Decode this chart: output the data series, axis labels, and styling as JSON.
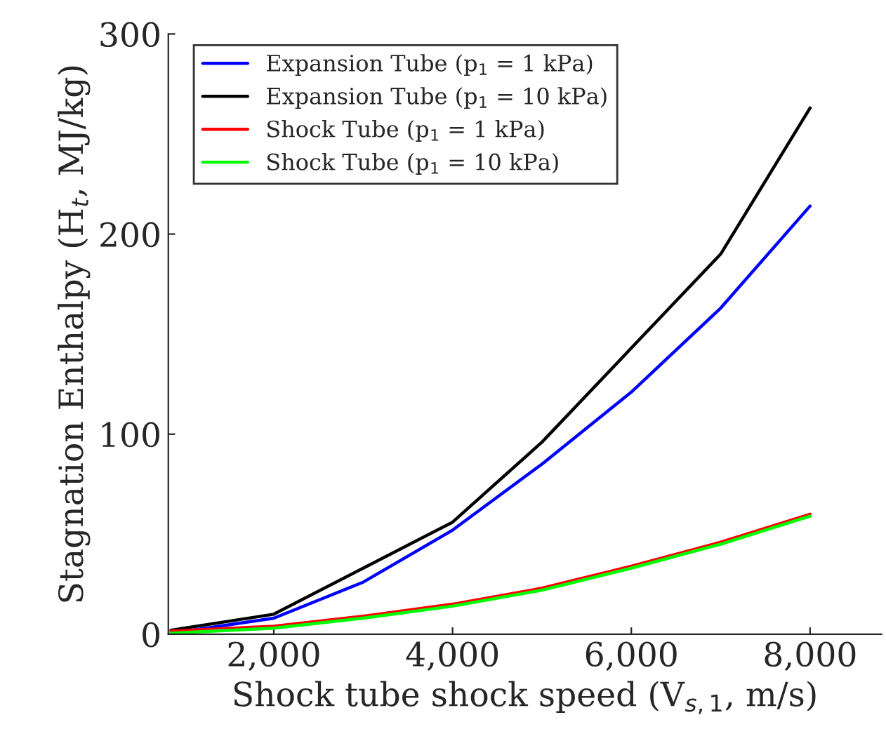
{
  "chart_data": {
    "type": "line",
    "xlabel": "Shock tube shock speed (V$_{s,1}$, m/s)",
    "ylabel": "Stagnation Enthalpy (H$_{t}$, MJ/kg)",
    "x": [
      850,
      2000,
      3000,
      4000,
      5000,
      6000,
      7000,
      8000
    ],
    "series": [
      {
        "name": "Expansion Tube (p$_{1}$ = 1 kPa)",
        "color": "#0000ff",
        "values": [
          0.5,
          8,
          26,
          52,
          85,
          121,
          163,
          214
        ]
      },
      {
        "name": "Expansion Tube (p$_{1}$ = 10 kPa)",
        "color": "#000000",
        "values": [
          2,
          10,
          33,
          56,
          96,
          143,
          190,
          263
        ]
      },
      {
        "name": "Shock Tube (p$_{1}$ = 1 kPa)",
        "color": "#ff0000",
        "values": [
          1.5,
          4,
          9,
          15,
          23,
          34,
          46,
          60
        ]
      },
      {
        "name": "Shock Tube (p$_{1}$ = 10 kPa)",
        "color": "#00ff00",
        "values": [
          0.5,
          3,
          8,
          14,
          22,
          33,
          45,
          59
        ]
      }
    ],
    "xlim": [
      820,
      8800
    ],
    "ylim": [
      0,
      300
    ],
    "xticks": [
      {
        "value": 2000,
        "label": "2,000"
      },
      {
        "value": 4000,
        "label": "4,000"
      },
      {
        "value": 6000,
        "label": "6,000"
      },
      {
        "value": 8000,
        "label": "8,000"
      }
    ],
    "yticks": [
      0,
      100,
      200,
      300
    ],
    "legend": "top left",
    "grid": false,
    "marker": "none",
    "line_style": "solid"
  }
}
